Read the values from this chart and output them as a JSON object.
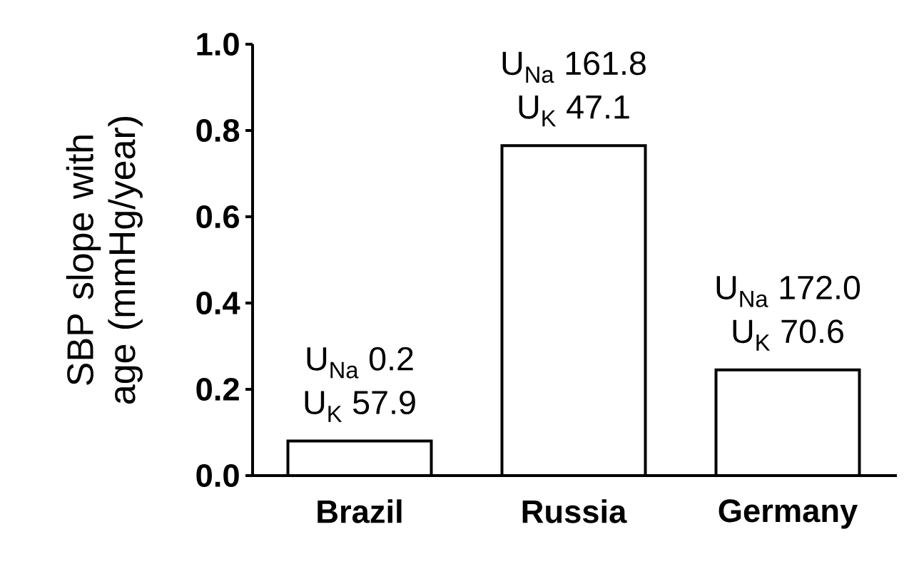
{
  "chart_data": {
    "type": "bar",
    "ylabel": "SBP slope with age (mmHg/year)",
    "categories": [
      "Brazil",
      "Russia",
      "Germany"
    ],
    "values": [
      0.08,
      0.765,
      0.245
    ],
    "color": "#ffffff",
    "ylim": [
      0,
      1.0
    ],
    "yticks": [
      {
        "value": 0,
        "label": "0.0"
      },
      0.2,
      0.4,
      0.6,
      0.8,
      {
        "value": 1.0,
        "label": "1.0"
      }
    ],
    "annotations": [
      {
        "text": "U$_{Na}$ 0.2",
        "x": "Brazil",
        "y": 0.08
      },
      {
        "text": "U$_{K}$ 57.9",
        "x": "Brazil",
        "y": 0.08
      },
      {
        "text": "U$_{Na}$ 161.8",
        "x": "Russia",
        "y": 0.765
      },
      {
        "text": "U$_{K}$ 47.1",
        "x": "Russia",
        "y": 0.765
      },
      {
        "text": "U$_{Na}$ 172.0",
        "x": "Germany",
        "y": 0.245
      },
      {
        "text": "U$_{K}$ 70.6",
        "x": "Germany",
        "y": 0.245
      }
    ]
  }
}
